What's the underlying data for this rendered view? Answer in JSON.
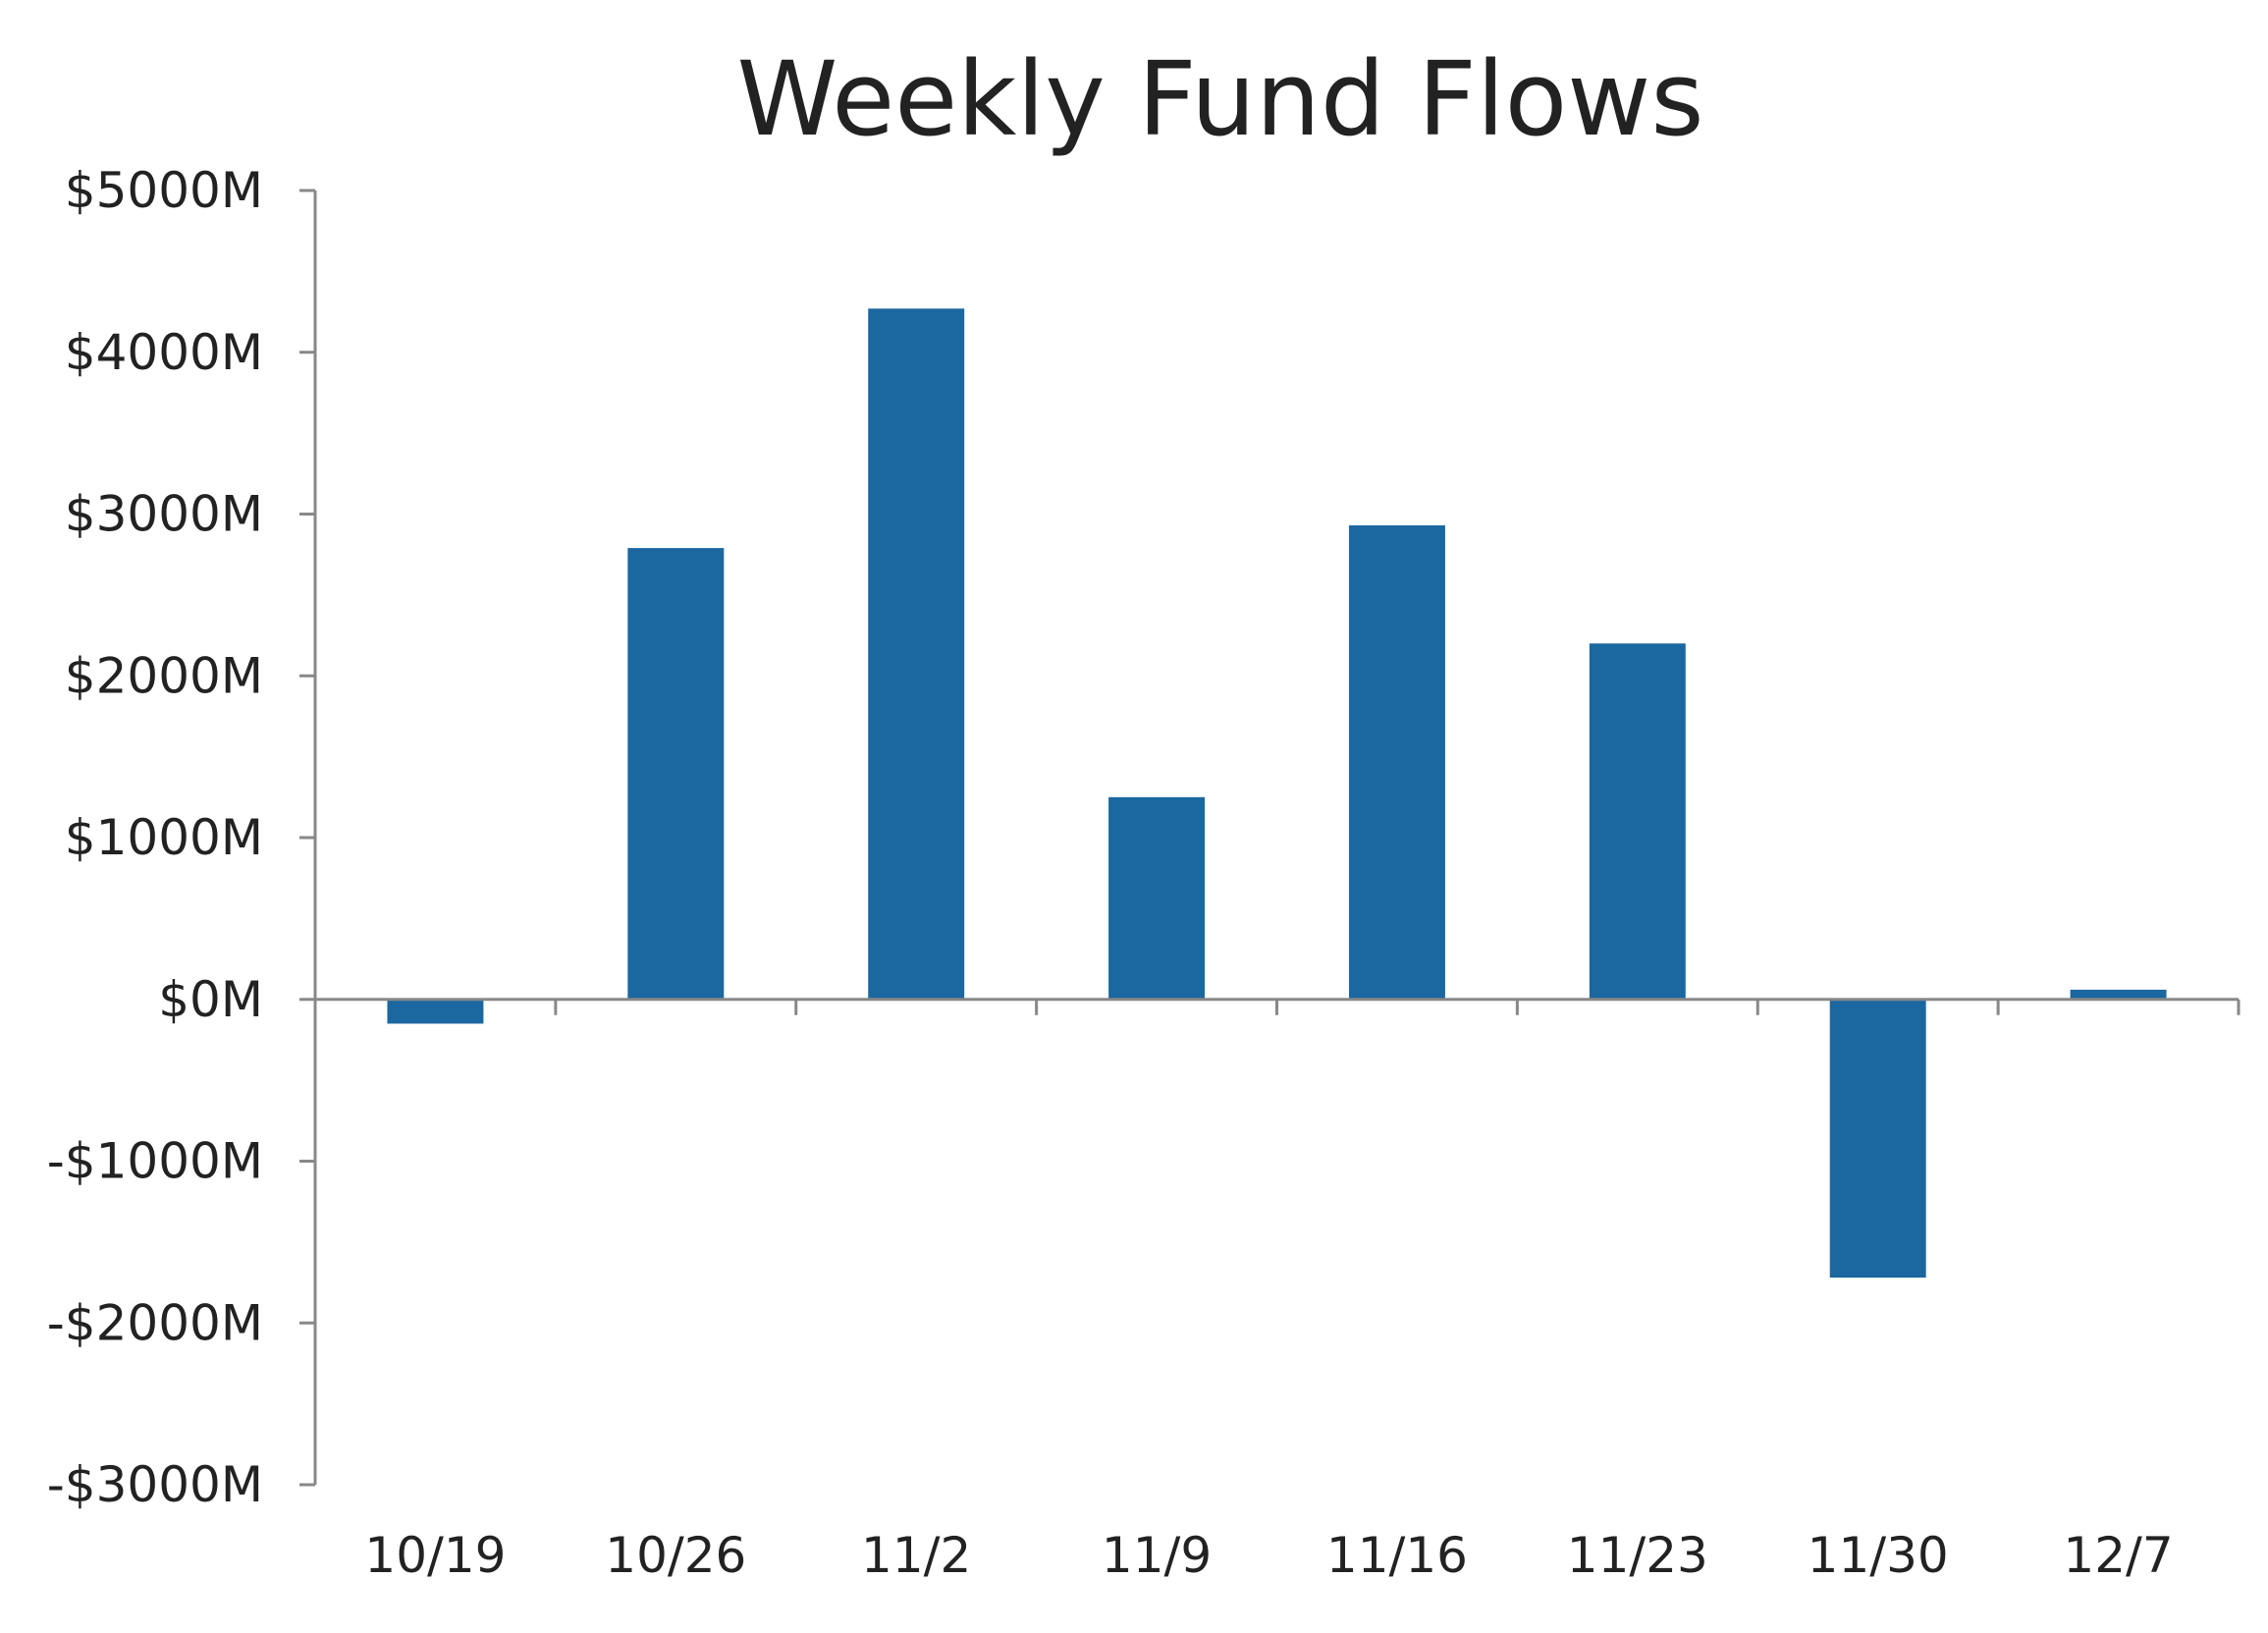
{
  "chart_data": {
    "type": "bar",
    "title": "Weekly Fund Flows",
    "xlabel": "",
    "ylabel": "",
    "categories": [
      "10/19",
      "10/26",
      "11/2",
      "11/9",
      "11/16",
      "11/23",
      "11/30",
      "12/7"
    ],
    "values": [
      -150,
      2790,
      4270,
      1250,
      2930,
      2200,
      -1720,
      60
    ],
    "ylim": [
      -3000,
      5000
    ],
    "yticks": [
      5000,
      4000,
      3000,
      2000,
      1000,
      0,
      -1000,
      -2000,
      -3000
    ],
    "ytick_labels": [
      "$5000M",
      "$4000M",
      "$3000M",
      "$2000M",
      "$1000M",
      "$0M",
      "-$1000M",
      "-$2000M",
      "-$3000M"
    ],
    "grid": false,
    "bar_color": "#1b67a0",
    "axis_color": "#888888"
  }
}
